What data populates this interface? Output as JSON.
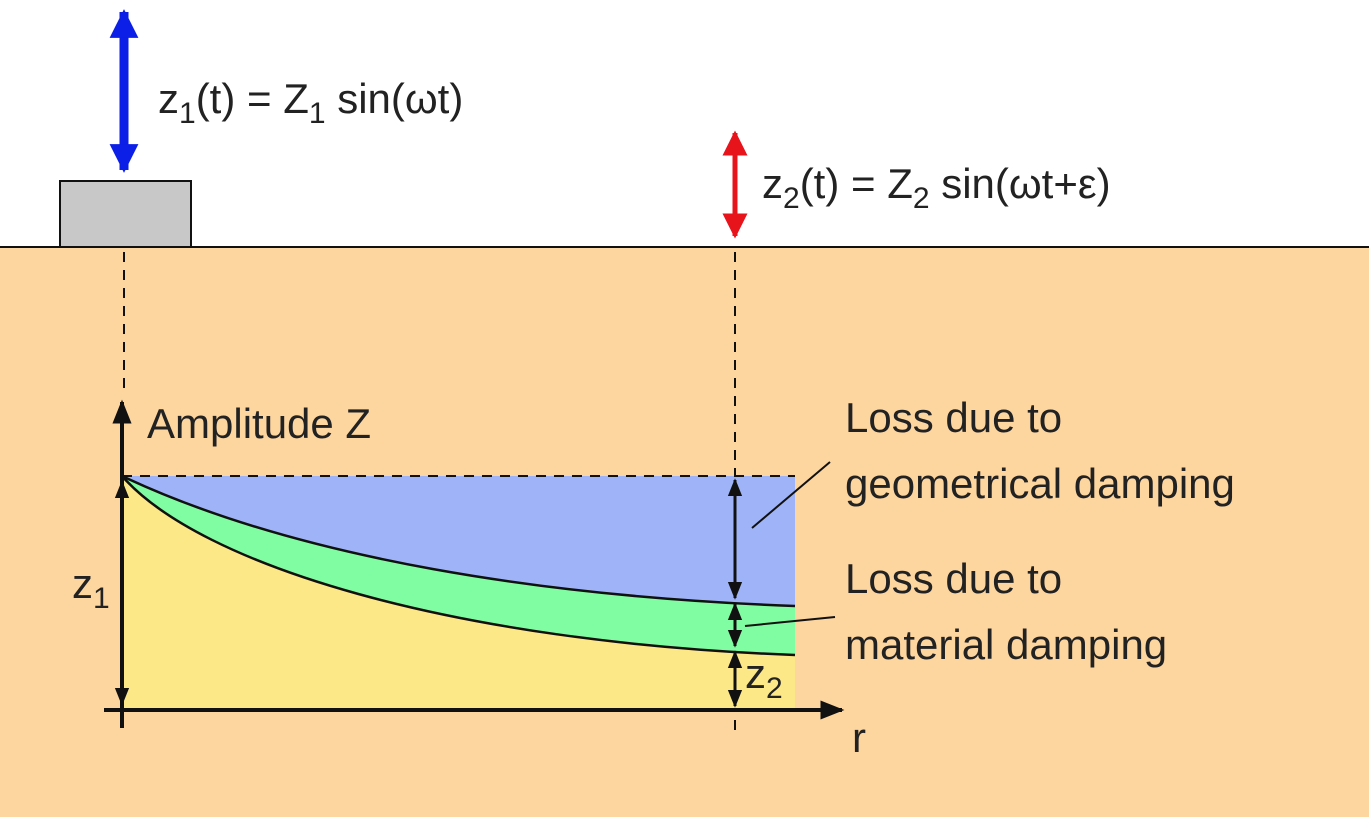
{
  "equations": [
    {
      "parts": [
        "z",
        "1",
        "(t) = Z",
        "1",
        " sin(ωt)"
      ]
    },
    {
      "parts": [
        "z",
        "2",
        "(t) = Z",
        "2",
        " sin(ωt+ε)"
      ]
    }
  ],
  "axis": {
    "y_label": "Amplitude Z",
    "x_label": "r"
  },
  "markers": {
    "z1": [
      "z",
      "1"
    ],
    "z2": [
      "z",
      "2"
    ]
  },
  "annotations": [
    {
      "lines": [
        "Loss due to",
        "geometrical damping"
      ]
    },
    {
      "lines": [
        "Loss due to",
        "material damping"
      ]
    }
  ]
}
